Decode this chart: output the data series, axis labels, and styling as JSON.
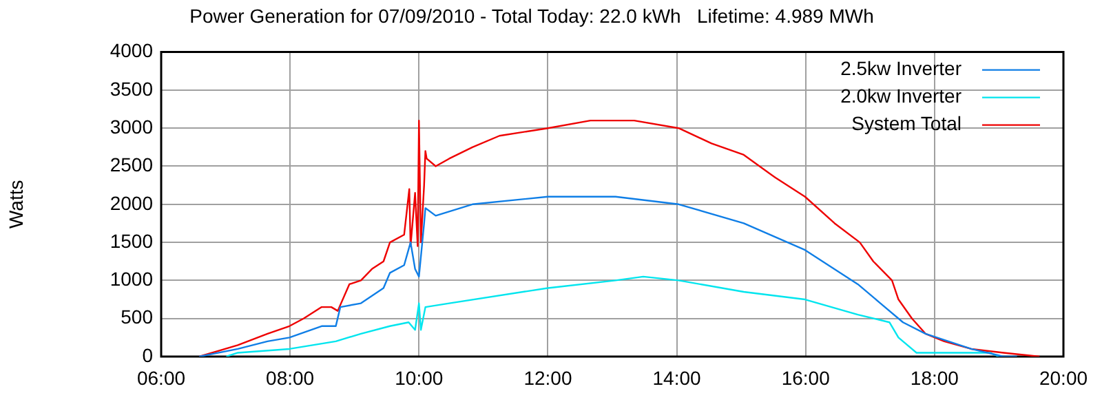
{
  "chart_data": {
    "type": "line",
    "title": "Power Generation for 07/09/2010 - Total Today: 22.0 kWh   Lifetime: 4.989 MWh",
    "ylabel": "Watts",
    "xlim": [
      6,
      20
    ],
    "xticks": [
      {
        "value": 6,
        "label": "06:00"
      },
      {
        "value": 8,
        "label": "08:00"
      },
      {
        "value": 10,
        "label": "10:00"
      },
      {
        "value": 12,
        "label": "12:00"
      },
      {
        "value": 14,
        "label": "14:00"
      },
      {
        "value": 16,
        "label": "16:00"
      },
      {
        "value": 18,
        "label": "18:00"
      },
      {
        "value": 20,
        "label": "20:00"
      }
    ],
    "ylim": [
      0,
      4000
    ],
    "yticks": [
      0,
      500,
      1000,
      1500,
      2000,
      2500,
      3000,
      3500,
      4000
    ],
    "grid": true,
    "legend": "top right",
    "marker": "none",
    "line_style": "solid",
    "series": [
      {
        "name": "2.5kw Inverter",
        "color": "#0f7ee6",
        "x": [
          6.59,
          7.19,
          7.65,
          7.99,
          8.49,
          8.71,
          8.78,
          9.1,
          9.45,
          9.55,
          9.77,
          9.87,
          9.94,
          10.0,
          10.08,
          10.1,
          10.26,
          10.83,
          12.0,
          13.05,
          14.03,
          15.04,
          15.99,
          16.81,
          17.16,
          17.51,
          17.86,
          18.57,
          19.07,
          19.28
        ],
        "values": [
          0,
          100,
          200,
          250,
          400,
          400,
          650,
          700,
          900,
          1100,
          1200,
          1500,
          1150,
          1050,
          1750,
          1950,
          1850,
          2000,
          2100,
          2100,
          2000,
          1750,
          1400,
          950,
          700,
          450,
          300,
          100,
          0,
          0
        ]
      },
      {
        "name": "2.0kw Inverter",
        "color": "#00e5ee",
        "x": [
          7.01,
          7.19,
          7.99,
          8.71,
          9.1,
          9.55,
          9.84,
          9.94,
          10.0,
          10.03,
          10.1,
          10.47,
          12.0,
          13.05,
          13.48,
          14.03,
          15.04,
          15.99,
          16.81,
          17.3,
          17.44,
          17.72,
          18.29,
          18.86,
          19.0
        ],
        "values": [
          0,
          50,
          100,
          200,
          300,
          400,
          450,
          350,
          700,
          350,
          650,
          700,
          900,
          1000,
          1050,
          1000,
          850,
          750,
          550,
          450,
          250,
          50,
          50,
          50,
          0
        ]
      },
      {
        "name": "System Total",
        "color": "#ee0000",
        "x": [
          6.59,
          7.19,
          7.65,
          7.99,
          8.21,
          8.49,
          8.64,
          8.74,
          8.92,
          9.1,
          9.27,
          9.45,
          9.55,
          9.77,
          9.85,
          9.87,
          9.94,
          9.98,
          10.0,
          10.03,
          10.08,
          10.1,
          10.12,
          10.26,
          10.47,
          10.83,
          11.25,
          12.0,
          12.66,
          12.92,
          13.34,
          14.03,
          14.54,
          15.04,
          15.53,
          15.99,
          16.45,
          16.84,
          17.05,
          17.34,
          17.44,
          17.65,
          17.86,
          18.15,
          18.57,
          19.07,
          19.63
        ],
        "values": [
          0,
          150,
          300,
          400,
          500,
          650,
          650,
          600,
          950,
          1000,
          1150,
          1250,
          1500,
          1600,
          2200,
          1450,
          2150,
          1450,
          3100,
          1500,
          2250,
          2700,
          2600,
          2500,
          2600,
          2750,
          2900,
          3000,
          3100,
          3100,
          3100,
          3000,
          2800,
          2650,
          2350,
          2100,
          1750,
          1500,
          1250,
          1000,
          750,
          500,
          300,
          200,
          100,
          50,
          0
        ]
      }
    ]
  }
}
